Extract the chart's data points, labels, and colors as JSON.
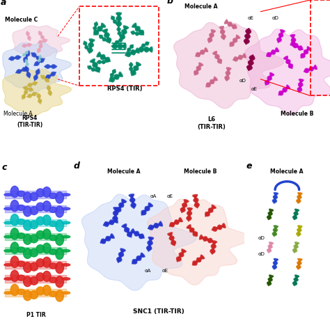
{
  "background_color": "#ffffff",
  "panels": {
    "a": {
      "label": "a",
      "molecule_c": "Molecule C",
      "molecule_a": "Molecule A",
      "rps4_tir_tir": "RPS4\n(TIR-TIR)",
      "rps4_tir": "RPS4 (TIR)",
      "colors": {
        "blue": "#2244cc",
        "pink": "#e8a0b8",
        "yellow": "#c8b040",
        "cyan": "#88cccc",
        "green": "#008866",
        "light_pink": "#f0c8d8",
        "light_blue": "#c0d0f0",
        "light_yellow": "#e8d890"
      }
    },
    "b": {
      "label": "b",
      "molecule_a": "Molecule A",
      "molecule_b": "Molecule B",
      "l6": "L6\n(TIR-TIR)",
      "aE1": "αE",
      "aD1": "αD",
      "aD2": "αD",
      "aE2": "αE",
      "colors": {
        "surface_a": "#f0c0d8",
        "helix_a": "#cc6688",
        "surface_b": "#f0b0e0",
        "helix_b": "#cc00cc",
        "interface": "#880044"
      }
    },
    "c": {
      "label": "c",
      "p1_tir": "P1 TIR",
      "colors": {
        "blue": "#4444ee",
        "cyan": "#00bbbb",
        "green": "#00aa44",
        "red": "#dd2222",
        "orange": "#ee8800",
        "yellow": "#ccbb00"
      }
    },
    "d": {
      "label": "d",
      "molecule_a": "Molecule A",
      "molecule_b": "Molecule B",
      "snc1": "SNC1 (TIR-TIR)",
      "aA1": "αA",
      "aE1": "αE",
      "aA2": "αA",
      "aE2": "αE",
      "colors": {
        "blue": "#2233cc",
        "red": "#cc2222",
        "surface_blue": "#c8d8f8",
        "surface_red": "#f8d0c8"
      }
    },
    "e": {
      "label": "e",
      "molecule_a": "Molecule A",
      "aD1": "αD",
      "aD2": "αD",
      "colors": {
        "blue": "#2244cc",
        "orange": "#dd7700",
        "dark_green": "#225500",
        "teal": "#007755",
        "green": "#448822",
        "yellow": "#aaaa00",
        "pink": "#dd88aa",
        "light_green": "#88aa44"
      }
    }
  }
}
